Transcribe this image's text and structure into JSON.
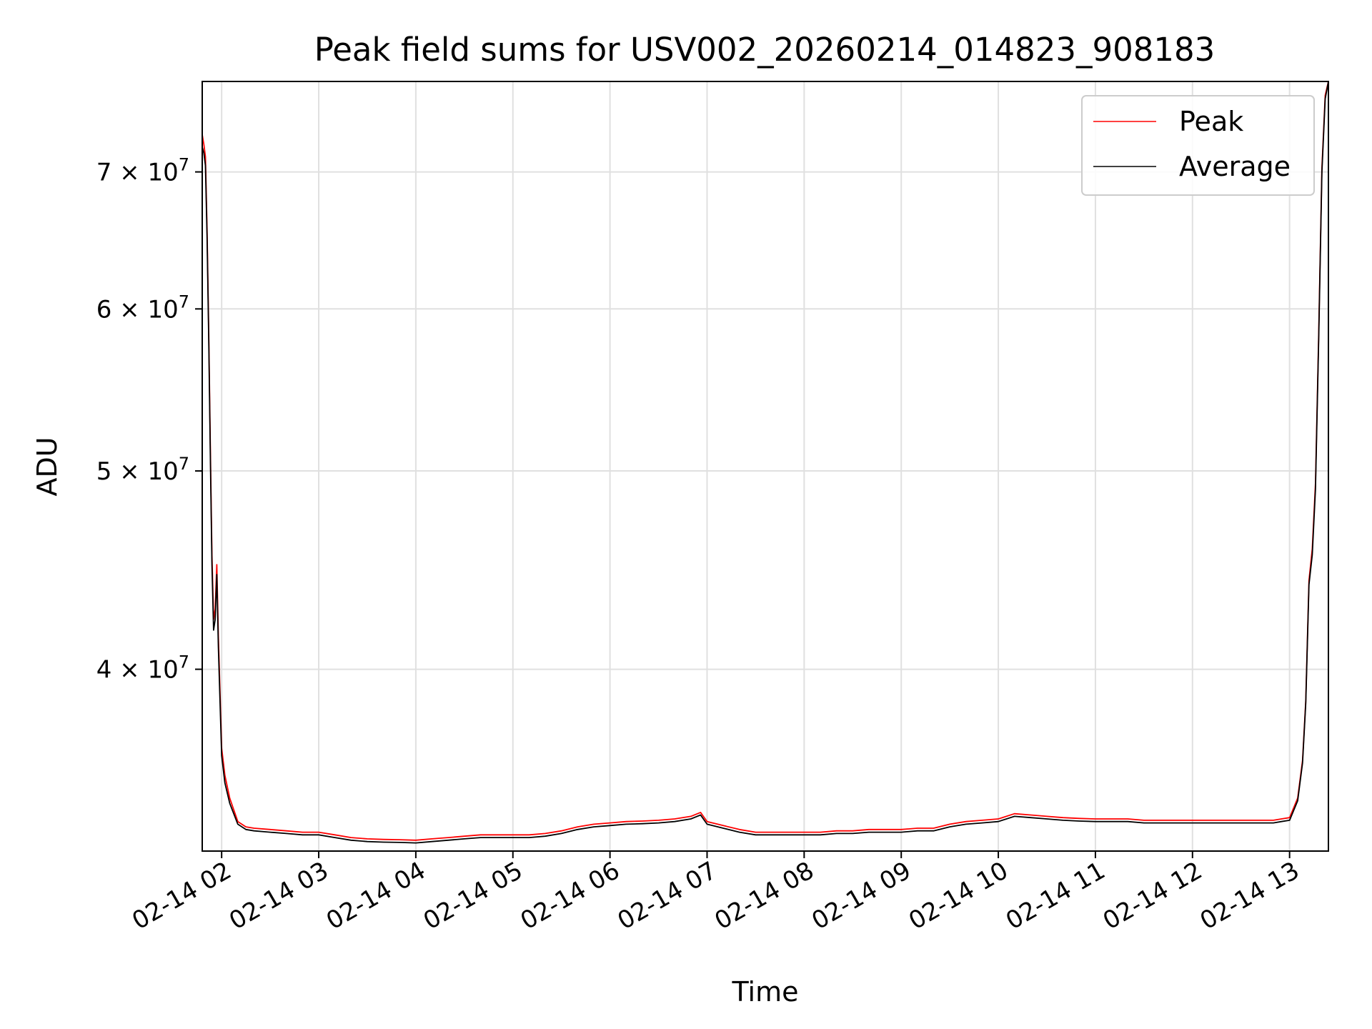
{
  "chart_data": {
    "type": "line",
    "title": "Peak field sums for USV002_20260214_014823_908183",
    "xlabel": "Time",
    "ylabel": "ADU",
    "y_scale": "log",
    "grid": true,
    "legend_position": "top-right",
    "x_ticks": [
      "02-14 02",
      "02-14 03",
      "02-14 04",
      "02-14 05",
      "02-14 06",
      "02-14 07",
      "02-14 08",
      "02-14 09",
      "02-14 10",
      "02-14 11",
      "02-14 12",
      "02-14 13"
    ],
    "y_ticks": [
      {
        "value": 40000000,
        "mantissa": "4",
        "base": "10",
        "exp": "7"
      },
      {
        "value": 50000000,
        "mantissa": "5",
        "base": "10",
        "exp": "7"
      },
      {
        "value": 60000000,
        "mantissa": "6",
        "base": "10",
        "exp": "7"
      },
      {
        "value": 70000000,
        "mantissa": "7",
        "base": "10",
        "exp": "7"
      }
    ],
    "xlim": [
      "02-14 01:48",
      "02-14 13:24"
    ],
    "ylim": [
      32600000,
      77500000
    ],
    "series": [
      {
        "name": "Average",
        "color": "#000000",
        "x": [
          "02-14 01:48",
          "02-14 01:49",
          "02-14 01:50",
          "02-14 01:51",
          "02-14 01:52",
          "02-14 01:53",
          "02-14 01:54",
          "02-14 01:55",
          "02-14 01:56",
          "02-14 01:57",
          "02-14 01:58",
          "02-14 02:00",
          "02-14 02:02",
          "02-14 02:05",
          "02-14 02:10",
          "02-14 02:15",
          "02-14 02:20",
          "02-14 02:30",
          "02-14 02:40",
          "02-14 02:50",
          "02-14 03:00",
          "02-14 03:10",
          "02-14 03:20",
          "02-14 03:30",
          "02-14 03:40",
          "02-14 03:50",
          "02-14 04:00",
          "02-14 04:10",
          "02-14 04:20",
          "02-14 04:30",
          "02-14 04:40",
          "02-14 04:50",
          "02-14 05:00",
          "02-14 05:10",
          "02-14 05:20",
          "02-14 05:30",
          "02-14 05:40",
          "02-14 05:50",
          "02-14 06:00",
          "02-14 06:10",
          "02-14 06:20",
          "02-14 06:30",
          "02-14 06:40",
          "02-14 06:50",
          "02-14 06:56",
          "02-14 07:00",
          "02-14 07:10",
          "02-14 07:20",
          "02-14 07:30",
          "02-14 07:40",
          "02-14 07:50",
          "02-14 08:00",
          "02-14 08:10",
          "02-14 08:20",
          "02-14 08:30",
          "02-14 08:40",
          "02-14 08:50",
          "02-14 09:00",
          "02-14 09:10",
          "02-14 09:20",
          "02-14 09:30",
          "02-14 09:40",
          "02-14 09:50",
          "02-14 10:00",
          "02-14 10:10",
          "02-14 10:20",
          "02-14 10:30",
          "02-14 10:40",
          "02-14 10:50",
          "02-14 11:00",
          "02-14 11:10",
          "02-14 11:20",
          "02-14 11:30",
          "02-14 11:40",
          "02-14 11:50",
          "02-14 12:00",
          "02-14 12:10",
          "02-14 12:20",
          "02-14 12:30",
          "02-14 12:40",
          "02-14 12:50",
          "02-14 12:55",
          "02-14 13:00",
          "02-14 13:05",
          "02-14 13:08",
          "02-14 13:10",
          "02-14 13:12",
          "02-14 13:14",
          "02-14 13:16",
          "02-14 13:18",
          "02-14 13:20",
          "02-14 13:22",
          "02-14 13:24"
        ],
        "values": [
          72000000,
          71500000,
          70500000,
          65000000,
          58000000,
          51000000,
          45000000,
          41800000,
          42300000,
          44500000,
          41000000,
          36300000,
          35200000,
          34400000,
          33600000,
          33400000,
          33350000,
          33300000,
          33250000,
          33200000,
          33200000,
          33100000,
          33000000,
          32950000,
          32930000,
          32920000,
          32900000,
          32950000,
          33000000,
          33050000,
          33100000,
          33100000,
          33100000,
          33100000,
          33150000,
          33250000,
          33400000,
          33500000,
          33550000,
          33600000,
          33620000,
          33650000,
          33700000,
          33800000,
          33950000,
          33600000,
          33450000,
          33300000,
          33200000,
          33200000,
          33200000,
          33200000,
          33200000,
          33250000,
          33250000,
          33300000,
          33300000,
          33300000,
          33350000,
          33350000,
          33500000,
          33600000,
          33650000,
          33700000,
          33900000,
          33850000,
          33800000,
          33750000,
          33720000,
          33700000,
          33700000,
          33700000,
          33650000,
          33650000,
          33650000,
          33650000,
          33650000,
          33650000,
          33650000,
          33650000,
          33650000,
          33700000,
          33750000,
          34500000,
          36000000,
          38500000,
          44000000,
          45500000,
          49000000,
          58000000,
          70000000,
          76000000,
          77500000
        ]
      },
      {
        "name": "Peak",
        "color": "#ff0000",
        "x": [
          "02-14 01:48",
          "02-14 01:49",
          "02-14 01:50",
          "02-14 01:51",
          "02-14 01:52",
          "02-14 01:53",
          "02-14 01:54",
          "02-14 01:55",
          "02-14 01:56",
          "02-14 01:57",
          "02-14 01:58",
          "02-14 02:00",
          "02-14 02:02",
          "02-14 02:05",
          "02-14 02:10",
          "02-14 02:15",
          "02-14 02:20",
          "02-14 02:30",
          "02-14 02:40",
          "02-14 02:50",
          "02-14 03:00",
          "02-14 03:10",
          "02-14 03:20",
          "02-14 03:30",
          "02-14 03:40",
          "02-14 03:50",
          "02-14 04:00",
          "02-14 04:10",
          "02-14 04:20",
          "02-14 04:30",
          "02-14 04:40",
          "02-14 04:50",
          "02-14 05:00",
          "02-14 05:10",
          "02-14 05:20",
          "02-14 05:30",
          "02-14 05:40",
          "02-14 05:50",
          "02-14 06:00",
          "02-14 06:10",
          "02-14 06:20",
          "02-14 06:30",
          "02-14 06:40",
          "02-14 06:50",
          "02-14 06:56",
          "02-14 07:00",
          "02-14 07:10",
          "02-14 07:20",
          "02-14 07:30",
          "02-14 07:40",
          "02-14 07:50",
          "02-14 08:00",
          "02-14 08:10",
          "02-14 08:20",
          "02-14 08:30",
          "02-14 08:40",
          "02-14 08:50",
          "02-14 09:00",
          "02-14 09:10",
          "02-14 09:20",
          "02-14 09:30",
          "02-14 09:40",
          "02-14 09:50",
          "02-14 10:00",
          "02-14 10:10",
          "02-14 10:20",
          "02-14 10:30",
          "02-14 10:40",
          "02-14 10:50",
          "02-14 11:00",
          "02-14 11:10",
          "02-14 11:20",
          "02-14 11:30",
          "02-14 11:40",
          "02-14 11:50",
          "02-14 12:00",
          "02-14 12:10",
          "02-14 12:20",
          "02-14 12:30",
          "02-14 12:40",
          "02-14 12:50",
          "02-14 12:55",
          "02-14 13:00",
          "02-14 13:05",
          "02-14 13:08",
          "02-14 13:10",
          "02-14 13:12",
          "02-14 13:14",
          "02-14 13:16",
          "02-14 13:18",
          "02-14 13:20",
          "02-14 13:22",
          "02-14 13:24"
        ],
        "values": [
          73000000,
          72200000,
          71200000,
          65500000,
          58500000,
          51500000,
          45500000,
          42300000,
          42800000,
          45000000,
          41500000,
          36600000,
          35500000,
          34600000,
          33700000,
          33500000,
          33450000,
          33400000,
          33350000,
          33300000,
          33300000,
          33200000,
          33100000,
          33050000,
          33030000,
          33020000,
          33000000,
          33050000,
          33100000,
          33150000,
          33200000,
          33200000,
          33200000,
          33200000,
          33250000,
          33350000,
          33500000,
          33600000,
          33650000,
          33700000,
          33720000,
          33750000,
          33800000,
          33900000,
          34050000,
          33700000,
          33550000,
          33400000,
          33300000,
          33300000,
          33300000,
          33300000,
          33300000,
          33350000,
          33350000,
          33400000,
          33400000,
          33400000,
          33450000,
          33450000,
          33600000,
          33700000,
          33750000,
          33800000,
          34000000,
          33950000,
          33900000,
          33850000,
          33820000,
          33800000,
          33800000,
          33800000,
          33750000,
          33750000,
          33750000,
          33750000,
          33750000,
          33750000,
          33750000,
          33750000,
          33750000,
          33800000,
          33850000,
          34600000,
          36100000,
          38600000,
          44200000,
          45800000,
          49300000,
          58300000,
          70300000,
          76300000,
          77500000
        ]
      }
    ]
  }
}
